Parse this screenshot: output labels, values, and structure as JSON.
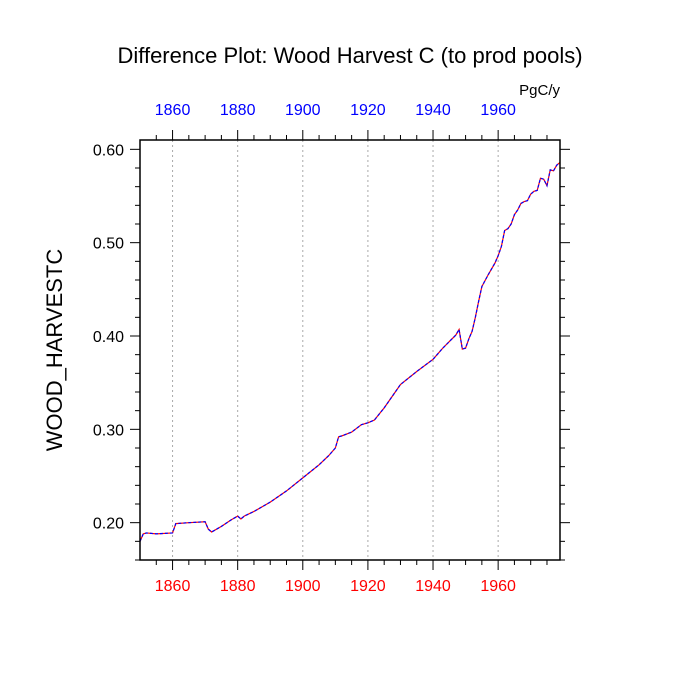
{
  "chart_data": {
    "type": "line",
    "title": "Difference Plot: Wood Harvest C (to prod pools)",
    "units_label": "PgC/y",
    "ylabel": "WOOD_HARVESTC",
    "xlabel": "",
    "xlim": [
      1850,
      1979
    ],
    "ylim": [
      0.16,
      0.61
    ],
    "x_ticks": [
      1860,
      1880,
      1900,
      1920,
      1940,
      1960
    ],
    "x_tick_labels": [
      "1860",
      "1880",
      "1900",
      "1920",
      "1940",
      "1960"
    ],
    "y_ticks": [
      0.2,
      0.3,
      0.4,
      0.5,
      0.6
    ],
    "y_tick_labels": [
      "0.20",
      "0.30",
      "0.40",
      "0.50",
      "0.60"
    ],
    "grid": "vertical-dotted",
    "colors": {
      "bottom_ticks": "#ff0000",
      "top_ticks": "#0000ff",
      "series_a": "#ff0000",
      "series_b": "#0000ff",
      "grid": "#aaaaaa"
    },
    "series": [
      {
        "x": [
          1850,
          1851,
          1852,
          1855,
          1860,
          1861,
          1865,
          1870,
          1871,
          1872,
          1875,
          1878,
          1880,
          1881,
          1882,
          1885,
          1890,
          1895,
          1900,
          1905,
          1908,
          1910,
          1911,
          1912,
          1915,
          1918,
          1920,
          1922,
          1925,
          1928,
          1930,
          1935,
          1940,
          1943,
          1945,
          1947,
          1948,
          1949,
          1950,
          1951,
          1952,
          1953,
          1954,
          1955,
          1957,
          1959,
          1960,
          1961,
          1962,
          1963,
          1964,
          1965,
          1966,
          1967,
          1968,
          1969,
          1970,
          1971,
          1972,
          1973,
          1974,
          1975,
          1976,
          1977,
          1978,
          1979
        ],
        "values": [
          0.18,
          0.188,
          0.189,
          0.188,
          0.189,
          0.199,
          0.2,
          0.201,
          0.193,
          0.19,
          0.196,
          0.203,
          0.207,
          0.204,
          0.207,
          0.212,
          0.222,
          0.234,
          0.248,
          0.262,
          0.272,
          0.28,
          0.292,
          0.293,
          0.297,
          0.305,
          0.307,
          0.31,
          0.323,
          0.338,
          0.348,
          0.362,
          0.375,
          0.387,
          0.394,
          0.401,
          0.407,
          0.386,
          0.387,
          0.397,
          0.405,
          0.42,
          0.437,
          0.453,
          0.466,
          0.478,
          0.486,
          0.496,
          0.513,
          0.515,
          0.52,
          0.53,
          0.535,
          0.542,
          0.544,
          0.545,
          0.552,
          0.555,
          0.556,
          0.569,
          0.568,
          0.561,
          0.578,
          0.577,
          0.583,
          0.586
        ]
      }
    ]
  }
}
